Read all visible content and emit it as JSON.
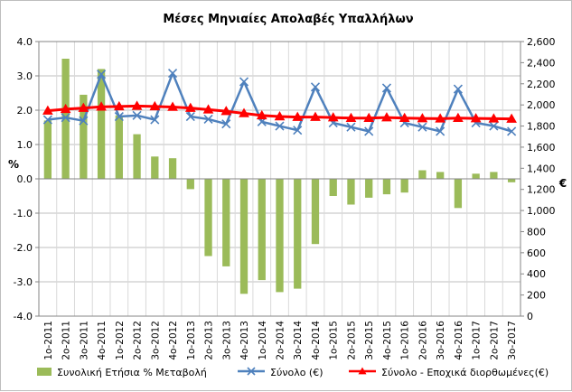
{
  "chart_data": {
    "type": "bar",
    "title": "Μέσες Μηνιαίες Απολαβές Υπαλλήλων",
    "ylabel_left": "%",
    "ylabel_right": "€",
    "ylim_left": [
      -4.0,
      4.0
    ],
    "ylim_right": [
      0,
      2600
    ],
    "yticks_left": [
      "4.0",
      "3.0",
      "2.0",
      "1.0",
      "0.0",
      "-1.0",
      "-2.0",
      "-3.0",
      "-4.0"
    ],
    "yticks_right": [
      "2,600",
      "2,400",
      "2,200",
      "2,000",
      "1,800",
      "1,600",
      "1,400",
      "1,200",
      "1,000",
      "800",
      "600",
      "400",
      "200",
      "0"
    ],
    "grid": true,
    "legend_position": "bottom",
    "categories": [
      "1ο-2011",
      "2ο-2011",
      "3ο-2011",
      "4ο-2011",
      "1ο-2012",
      "2ο-2012",
      "3ο-2012",
      "4ο-2012",
      "1ο-2013",
      "2ο-2013",
      "3ο-2013",
      "4ο-2013",
      "1ο-2014",
      "2ο-2014",
      "3ο-2014",
      "4ο-2014",
      "1ο-2015",
      "2ο-2015",
      "3ο-2015",
      "4ο-2015",
      "1ο-2016",
      "2ο-2016",
      "3ο-2016",
      "4ο-2016",
      "1ο-2017",
      "2ο-2017",
      "3ο-2017"
    ],
    "series": [
      {
        "name": "Συνολική Ετήσια % Μεταβολή",
        "kind": "bar",
        "axis": "left",
        "color": "#9bbb59",
        "values": [
          1.7,
          3.5,
          2.45,
          3.2,
          1.85,
          1.3,
          0.65,
          0.6,
          -0.3,
          -2.25,
          -2.55,
          -3.35,
          -2.95,
          -3.3,
          -3.2,
          -1.9,
          -0.5,
          -0.75,
          -0.55,
          -0.45,
          -0.4,
          0.25,
          0.2,
          -0.85,
          0.15,
          0.2,
          -0.1
        ]
      },
      {
        "name": "Σύνολο (€)",
        "kind": "line",
        "marker": "x",
        "axis": "right",
        "color": "#4f81bd",
        "values": [
          1860,
          1880,
          1850,
          2290,
          1890,
          1900,
          1860,
          2300,
          1890,
          1865,
          1820,
          2220,
          1840,
          1800,
          1760,
          2170,
          1830,
          1790,
          1750,
          2160,
          1830,
          1790,
          1750,
          2150,
          1830,
          1800,
          1750
        ]
      },
      {
        "name": "Σύνολο - Εποχικά διορθωμένες(€)",
        "kind": "line",
        "marker": "triangle",
        "axis": "right",
        "color": "#ff0000",
        "values": [
          1945,
          1960,
          1970,
          1982,
          1985,
          1990,
          1985,
          1980,
          1970,
          1955,
          1940,
          1920,
          1900,
          1890,
          1885,
          1885,
          1880,
          1875,
          1875,
          1880,
          1875,
          1872,
          1870,
          1875,
          1872,
          1870,
          1868
        ]
      }
    ]
  }
}
